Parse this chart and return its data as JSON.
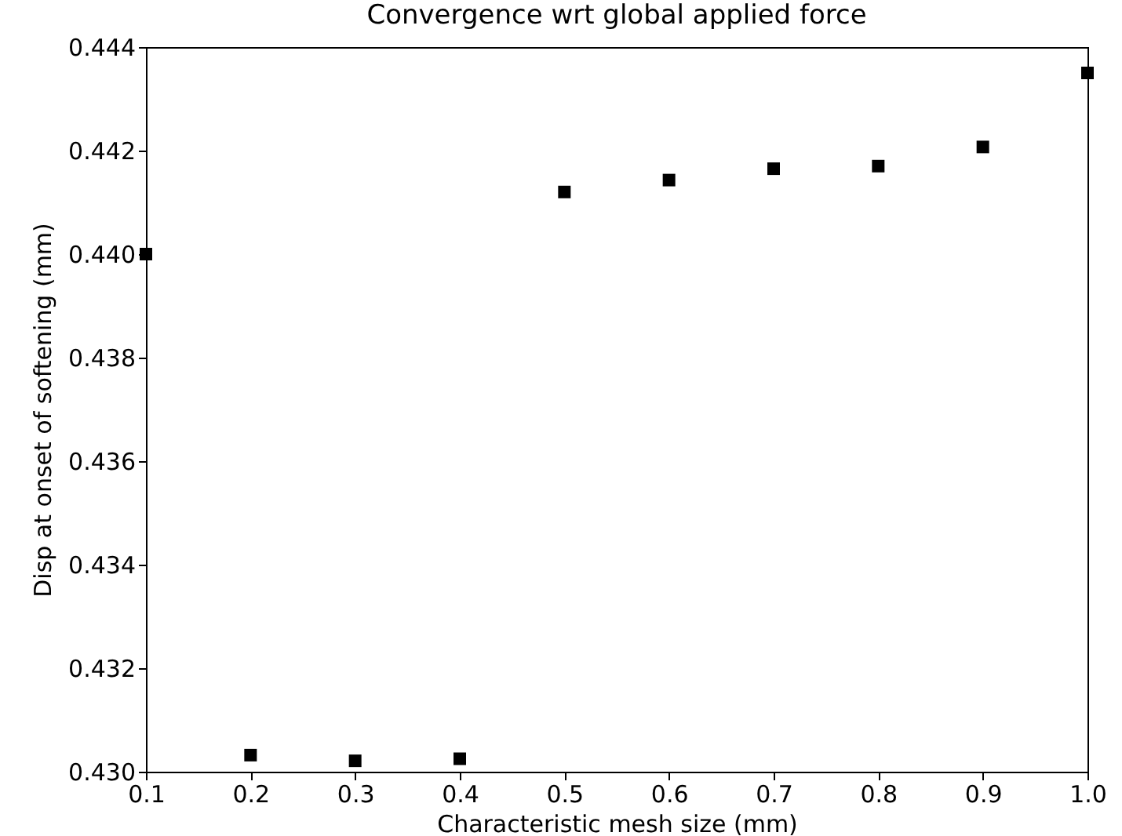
{
  "chart_data": {
    "type": "scatter",
    "title": "Convergence wrt global applied force",
    "xlabel": "Characteristic mesh size (mm)",
    "ylabel": "Disp at onset of softening (mm)",
    "x": [
      0.1,
      0.2,
      0.3,
      0.4,
      0.5,
      0.6,
      0.7,
      0.8,
      0.9,
      1.0
    ],
    "series": [
      {
        "color": "#000000",
        "values": [
          0.44,
          0.43032,
          0.43021,
          0.43025,
          0.4412,
          0.44143,
          0.44165,
          0.4417,
          0.44207,
          0.4435
        ]
      }
    ],
    "xlim": [
      0.1,
      1.0
    ],
    "xticks": [
      {
        "value": 0.1,
        "label": "0.1"
      },
      {
        "value": 0.2,
        "label": "0.2"
      },
      {
        "value": 0.3,
        "label": "0.3"
      },
      {
        "value": 0.4,
        "label": "0.4"
      },
      {
        "value": 0.5,
        "label": "0.5"
      },
      {
        "value": 0.6,
        "label": "0.6"
      },
      {
        "value": 0.7,
        "label": "0.7"
      },
      {
        "value": 0.8,
        "label": "0.8"
      },
      {
        "value": 0.9,
        "label": "0.9"
      },
      {
        "value": 1.0,
        "label": "1.0"
      }
    ],
    "ylim": [
      0.43,
      0.444
    ],
    "yticks": [
      {
        "value": 0.43,
        "label": "0.430"
      },
      {
        "value": 0.432,
        "label": "0.432"
      },
      {
        "value": 0.434,
        "label": "0.434"
      },
      {
        "value": 0.436,
        "label": "0.436"
      },
      {
        "value": 0.438,
        "label": "0.438"
      },
      {
        "value": 0.44,
        "label": "0.440"
      },
      {
        "value": 0.442,
        "label": "0.442"
      },
      {
        "value": 0.444,
        "label": "0.444"
      }
    ],
    "marker": "square",
    "grid": false,
    "legend": false
  }
}
